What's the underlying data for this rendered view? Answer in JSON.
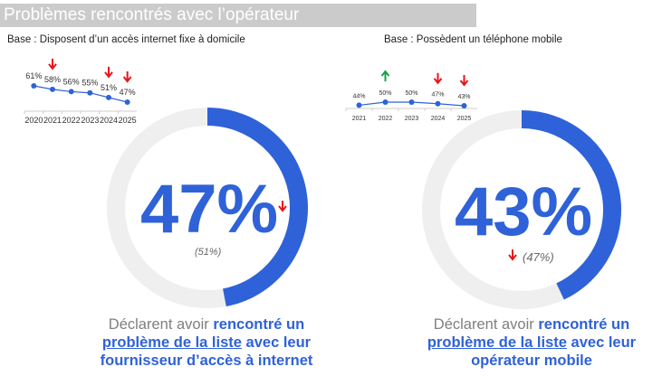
{
  "title": "Problèmes rencontrés avec l’opérateur",
  "left": {
    "base": "Base : Disposent d’un accès internet fixe à domicile",
    "value": "47%",
    "previous": "(51%)",
    "value_pct": 47,
    "trend": "down",
    "desc_pre": "Déclarent avoir ",
    "desc_link1": "rencontré un",
    "desc_link2": "problème de la liste",
    "desc_post1": " avec leur",
    "desc_post2": "fournisseur d’accès à internet",
    "chart": {
      "years": [
        "2020",
        "2021",
        "2022",
        "2023",
        "2024",
        "2025"
      ],
      "values": [
        61,
        58,
        56,
        55,
        51,
        47
      ],
      "labels": [
        "61%",
        "58%",
        "56%",
        "55%",
        "51%",
        "47%"
      ],
      "arrows": [
        "",
        "down",
        "",
        "",
        "down",
        "down"
      ]
    }
  },
  "right": {
    "base": "Base : Possèdent un téléphone mobile",
    "value": "43%",
    "previous": "(47%)",
    "value_pct": 43,
    "trend": "down",
    "desc_pre": "Déclarent avoir ",
    "desc_link1": "rencontré un",
    "desc_link2": "problème de la liste",
    "desc_post1": " avec leur",
    "desc_post2": "opérateur mobile",
    "chart": {
      "years": [
        "2021",
        "2022",
        "2023",
        "2024",
        "2025"
      ],
      "values": [
        44,
        50,
        50,
        47,
        43
      ],
      "labels": [
        "44%",
        "50%",
        "50%",
        "47%",
        "43%"
      ],
      "arrows": [
        "",
        "up",
        "",
        "down",
        "down"
      ]
    }
  },
  "colors": {
    "accent": "#2f62d8",
    "track": "#efefef",
    "down": "#e8141b",
    "up": "#15a34a"
  }
}
